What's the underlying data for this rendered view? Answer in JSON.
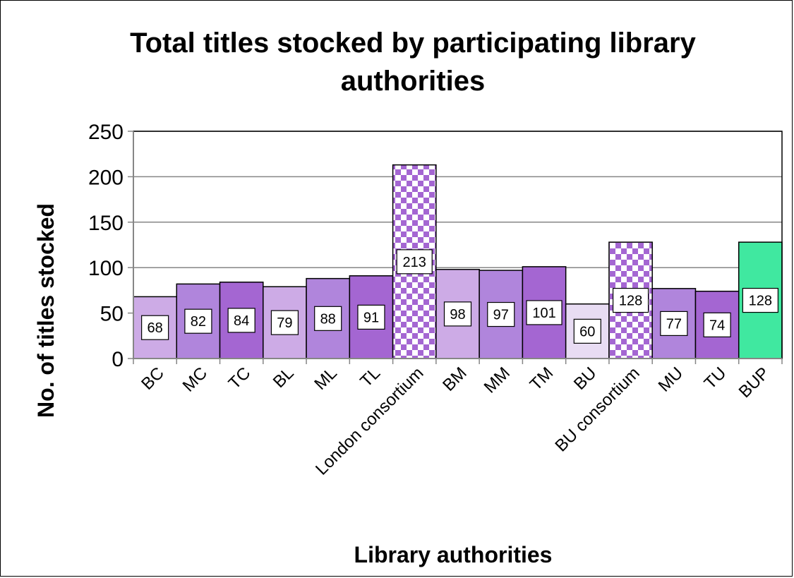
{
  "chart_data": {
    "type": "bar",
    "title": "Total titles stocked by participating library authorities",
    "xlabel": "Library authorities",
    "ylabel": "No. of titles stocked",
    "ylim": [
      0,
      250
    ],
    "yticks": [
      0,
      50,
      100,
      150,
      200,
      250
    ],
    "grid": true,
    "legend": "none",
    "categories": [
      "BC",
      "MC",
      "TC",
      "BL",
      "ML",
      "TL",
      "London consortium",
      "BM",
      "MM",
      "TM",
      "BU",
      "BU consortium",
      "MU",
      "TU",
      "BUP"
    ],
    "values": [
      68,
      82,
      84,
      79,
      88,
      91,
      213,
      98,
      97,
      101,
      60,
      128,
      77,
      74,
      128
    ],
    "data_labels": [
      "68",
      "82",
      "84",
      "79",
      "88",
      "91",
      "213",
      "98",
      "97",
      "101",
      "60",
      "128",
      "77",
      "74",
      "128"
    ],
    "bar_colors": [
      "#cdabe6",
      "#b085dc",
      "#a466d2",
      "#cdabe6",
      "#b085dc",
      "#a466d2",
      "checker",
      "#cdabe6",
      "#b085dc",
      "#a466d2",
      "#e8dcf3",
      "checker",
      "#b085dc",
      "#a466d2",
      "#40e8a0"
    ]
  }
}
